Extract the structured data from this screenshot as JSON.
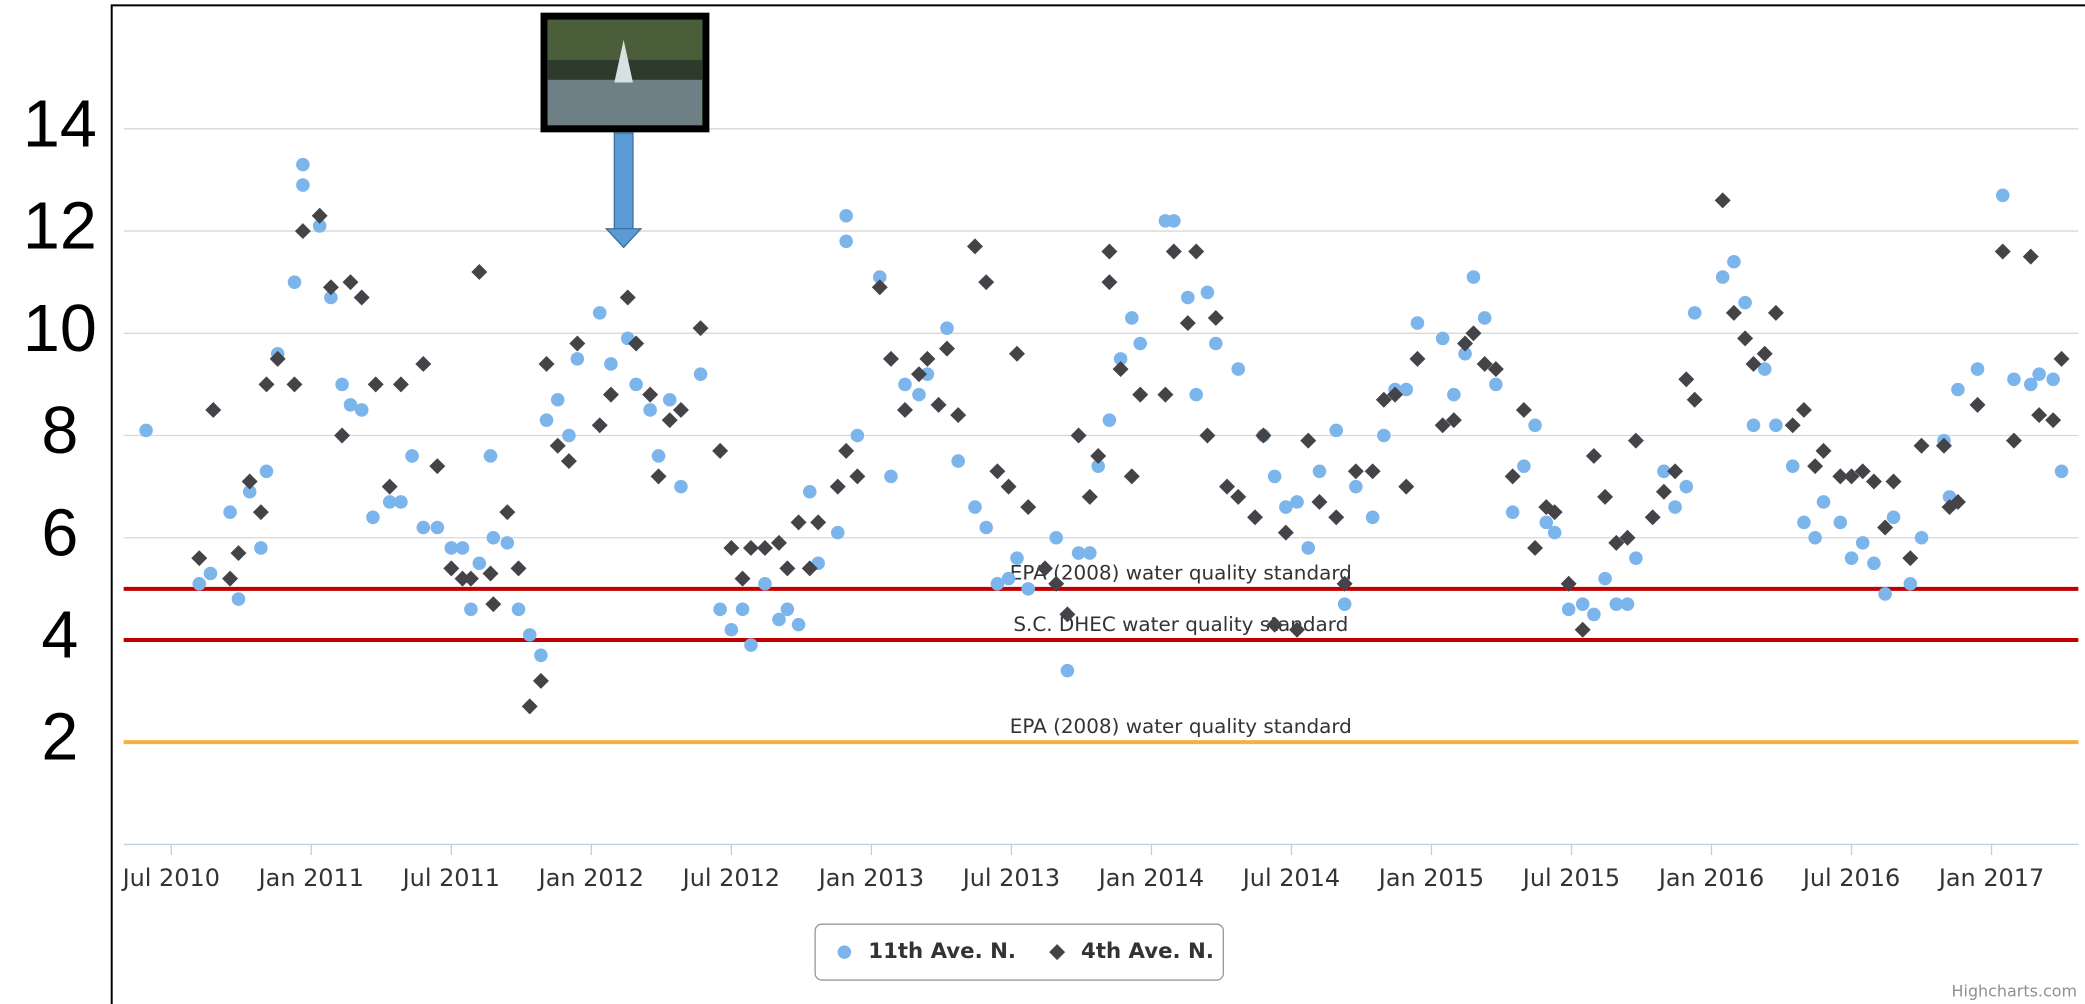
{
  "chart_data": {
    "type": "scatter",
    "xlim": [
      2010.33,
      2017.31
    ],
    "xticks": [
      {
        "value": 2010.5,
        "label": "Jul 2010"
      },
      {
        "value": 2011.0,
        "label": "Jan 2011"
      },
      {
        "value": 2011.5,
        "label": "Jul 2011"
      },
      {
        "value": 2012.0,
        "label": "Jan 2012"
      },
      {
        "value": 2012.5,
        "label": "Jul 2012"
      },
      {
        "value": 2013.0,
        "label": "Jan 2013"
      },
      {
        "value": 2013.5,
        "label": "Jul 2013"
      },
      {
        "value": 2014.0,
        "label": "Jan 2014"
      },
      {
        "value": 2014.5,
        "label": "Jul 2014"
      },
      {
        "value": 2015.0,
        "label": "Jan 2015"
      },
      {
        "value": 2015.5,
        "label": "Jul 2015"
      },
      {
        "value": 2016.0,
        "label": "Jan 2016"
      },
      {
        "value": 2016.5,
        "label": "Jul 2016"
      },
      {
        "value": 2017.0,
        "label": "Jan 2017"
      }
    ],
    "ylim": [
      0,
      16
    ],
    "yticks": [
      2,
      4,
      6,
      8,
      10,
      12,
      14
    ],
    "grid": true,
    "plot_lines": [
      {
        "value": 5,
        "color": "#c00000",
        "label": "EPA (2008) water quality standard"
      },
      {
        "value": 4,
        "color": "#c00000",
        "label": "S.C. DHEC water quality standard"
      },
      {
        "value": 2,
        "color": "#f4b042",
        "label": "EPA (2008) water quality standard"
      }
    ],
    "series": [
      {
        "name": "11th Ave. N.",
        "color": "#7cb5ec",
        "marker": "circle",
        "x": [
          2010.41,
          2010.6,
          2010.64,
          2010.71,
          2010.74,
          2010.78,
          2010.82,
          2010.84,
          2010.88,
          2010.94,
          2010.97,
          2010.97,
          2011.03,
          2011.07,
          2011.11,
          2011.14,
          2011.18,
          2011.22,
          2011.28,
          2011.32,
          2011.36,
          2011.4,
          2011.45,
          2011.5,
          2011.54,
          2011.57,
          2011.6,
          2011.64,
          2011.65,
          2011.7,
          2011.74,
          2011.78,
          2011.82,
          2011.84,
          2011.88,
          2011.92,
          2011.95,
          2012.03,
          2012.07,
          2012.13,
          2012.16,
          2012.21,
          2012.24,
          2012.28,
          2012.32,
          2012.39,
          2012.46,
          2012.5,
          2012.54,
          2012.57,
          2012.62,
          2012.67,
          2012.7,
          2012.74,
          2012.78,
          2012.81,
          2012.88,
          2012.91,
          2012.91,
          2012.95,
          2013.03,
          2013.07,
          2013.12,
          2013.17,
          2013.2,
          2013.27,
          2013.31,
          2013.37,
          2013.41,
          2013.45,
          2013.49,
          2013.52,
          2013.56,
          2013.66,
          2013.7,
          2013.74,
          2013.78,
          2013.81,
          2013.85,
          2013.89,
          2013.93,
          2013.96,
          2014.05,
          2014.08,
          2014.13,
          2014.16,
          2014.2,
          2014.23,
          2014.31,
          2014.4,
          2014.44,
          2014.48,
          2014.52,
          2014.56,
          2014.6,
          2014.66,
          2014.69,
          2014.73,
          2014.79,
          2014.83,
          2014.87,
          2014.91,
          2014.95,
          2015.04,
          2015.08,
          2015.12,
          2015.15,
          2015.19,
          2015.23,
          2015.29,
          2015.33,
          2015.37,
          2015.41,
          2015.44,
          2015.49,
          2015.54,
          2015.58,
          2015.62,
          2015.66,
          2015.7,
          2015.73,
          2015.83,
          2015.87,
          2015.91,
          2015.94,
          2016.04,
          2016.08,
          2016.12,
          2016.15,
          2016.19,
          2016.23,
          2016.29,
          2016.33,
          2016.37,
          2016.4,
          2016.46,
          2016.5,
          2016.54,
          2016.58,
          2016.62,
          2016.65,
          2016.71,
          2016.75,
          2016.83,
          2016.85,
          2016.88,
          2016.95,
          2017.04,
          2017.08,
          2017.14,
          2017.17,
          2017.22,
          2017.25
        ],
        "values": [
          8.1,
          5.1,
          5.3,
          6.5,
          4.8,
          6.9,
          5.8,
          7.3,
          9.6,
          11.0,
          13.3,
          12.9,
          12.1,
          10.7,
          9.0,
          8.6,
          8.5,
          6.4,
          6.7,
          6.7,
          7.6,
          6.2,
          6.2,
          5.8,
          5.8,
          4.6,
          5.5,
          7.6,
          6.0,
          5.9,
          4.6,
          4.1,
          3.7,
          8.3,
          8.7,
          8.0,
          9.5,
          10.4,
          9.4,
          9.9,
          9.0,
          8.5,
          7.6,
          8.7,
          7.0,
          9.2,
          4.6,
          4.2,
          4.6,
          3.9,
          5.1,
          4.4,
          4.6,
          4.3,
          6.9,
          5.5,
          6.1,
          12.3,
          11.8,
          8.0,
          11.1,
          7.2,
          9.0,
          8.8,
          9.2,
          10.1,
          7.5,
          6.6,
          6.2,
          5.1,
          5.2,
          5.6,
          5.0,
          6.0,
          3.4,
          5.7,
          5.7,
          7.4,
          8.3,
          9.5,
          10.3,
          9.8,
          12.2,
          12.2,
          10.7,
          8.8,
          10.8,
          9.8,
          9.3,
          8.0,
          7.2,
          6.6,
          6.7,
          5.8,
          7.3,
          8.1,
          4.7,
          7.0,
          6.4,
          8.0,
          8.9,
          8.9,
          10.2,
          9.9,
          8.8,
          9.6,
          11.1,
          10.3,
          9.0,
          6.5,
          7.4,
          8.2,
          6.3,
          6.1,
          4.6,
          4.7,
          4.5,
          5.2,
          4.7,
          4.7,
          5.6,
          7.3,
          6.6,
          7.0,
          10.4,
          11.1,
          11.4,
          10.6,
          8.2,
          9.3,
          8.2,
          7.4,
          6.3,
          6.0,
          6.7,
          6.3,
          5.6,
          5.9,
          5.5,
          4.9,
          6.4,
          5.1,
          6.0,
          7.9,
          6.8,
          8.9,
          9.3,
          12.7,
          9.1,
          9.0,
          9.2,
          9.1,
          7.3
        ]
      },
      {
        "name": "4th Ave. N.",
        "color": "#434348",
        "marker": "diamond",
        "x": [
          2010.6,
          2010.65,
          2010.71,
          2010.74,
          2010.78,
          2010.82,
          2010.84,
          2010.88,
          2010.94,
          2010.97,
          2011.03,
          2011.07,
          2011.11,
          2011.14,
          2011.18,
          2011.23,
          2011.28,
          2011.32,
          2011.4,
          2011.45,
          2011.5,
          2011.54,
          2011.57,
          2011.6,
          2011.64,
          2011.65,
          2011.7,
          2011.74,
          2011.78,
          2011.82,
          2011.84,
          2011.88,
          2011.92,
          2011.95,
          2012.03,
          2012.07,
          2012.13,
          2012.16,
          2012.21,
          2012.24,
          2012.28,
          2012.32,
          2012.39,
          2012.46,
          2012.5,
          2012.54,
          2012.57,
          2012.62,
          2012.67,
          2012.7,
          2012.74,
          2012.78,
          2012.81,
          2012.88,
          2012.91,
          2012.95,
          2013.03,
          2013.07,
          2013.12,
          2013.17,
          2013.2,
          2013.24,
          2013.27,
          2013.31,
          2013.37,
          2013.41,
          2013.45,
          2013.49,
          2013.52,
          2013.56,
          2013.62,
          2013.66,
          2013.7,
          2013.74,
          2013.78,
          2013.81,
          2013.85,
          2013.85,
          2013.89,
          2013.93,
          2013.96,
          2014.05,
          2014.08,
          2014.13,
          2014.16,
          2014.2,
          2014.23,
          2014.27,
          2014.31,
          2014.37,
          2014.4,
          2014.44,
          2014.48,
          2014.52,
          2014.56,
          2014.6,
          2014.66,
          2014.69,
          2014.73,
          2014.79,
          2014.83,
          2014.87,
          2014.91,
          2014.95,
          2015.04,
          2015.08,
          2015.12,
          2015.15,
          2015.19,
          2015.23,
          2015.29,
          2015.33,
          2015.37,
          2015.41,
          2015.44,
          2015.49,
          2015.54,
          2015.58,
          2015.62,
          2015.66,
          2015.7,
          2015.73,
          2015.79,
          2015.83,
          2015.87,
          2015.91,
          2015.94,
          2016.04,
          2016.08,
          2016.12,
          2016.15,
          2016.19,
          2016.23,
          2016.29,
          2016.33,
          2016.37,
          2016.4,
          2016.46,
          2016.5,
          2016.54,
          2016.58,
          2016.62,
          2016.65,
          2016.71,
          2016.75,
          2016.83,
          2016.85,
          2016.88,
          2016.95,
          2017.04,
          2017.08,
          2017.14,
          2017.17,
          2017.22,
          2017.25
        ],
        "values": [
          5.6,
          8.5,
          5.2,
          5.7,
          7.1,
          6.5,
          9.0,
          9.5,
          9.0,
          12.0,
          12.3,
          10.9,
          8.0,
          11.0,
          10.7,
          9.0,
          7.0,
          9.0,
          9.4,
          7.4,
          5.4,
          5.2,
          5.2,
          11.2,
          5.3,
          4.7,
          6.5,
          5.4,
          2.7,
          3.2,
          9.4,
          7.8,
          7.5,
          9.8,
          8.2,
          8.8,
          10.7,
          9.8,
          8.8,
          7.2,
          8.3,
          8.5,
          10.1,
          7.7,
          5.8,
          5.2,
          5.8,
          5.8,
          5.9,
          5.4,
          6.3,
          5.4,
          6.3,
          7.0,
          7.7,
          7.2,
          10.9,
          9.5,
          8.5,
          9.2,
          9.5,
          8.6,
          9.7,
          8.4,
          11.7,
          11.0,
          7.3,
          7.0,
          9.6,
          6.6,
          5.4,
          5.1,
          4.5,
          8.0,
          6.8,
          7.6,
          11.6,
          11.0,
          9.3,
          7.2,
          8.8,
          8.8,
          11.6,
          10.2,
          11.6,
          8.0,
          10.3,
          7.0,
          6.8,
          6.4,
          8.0,
          4.3,
          6.1,
          4.2,
          7.9,
          6.7,
          6.4,
          5.1,
          7.3,
          7.3,
          8.7,
          8.8,
          7.0,
          9.5,
          8.2,
          8.3,
          9.8,
          10.0,
          9.4,
          9.3,
          7.2,
          8.5,
          5.8,
          6.6,
          6.5,
          5.1,
          4.2,
          7.6,
          6.8,
          5.9,
          6.0,
          7.9,
          6.4,
          6.9,
          7.3,
          9.1,
          8.7,
          12.6,
          10.4,
          9.9,
          9.4,
          9.6,
          10.4,
          8.2,
          8.5,
          7.4,
          7.7,
          7.2,
          7.2,
          7.3,
          7.1,
          6.2,
          7.1,
          5.6,
          7.8,
          7.8,
          6.6,
          6.7,
          8.6,
          11.6,
          7.9,
          11.5,
          8.4,
          8.3,
          9.5
        ]
      }
    ],
    "credits": "Highcharts.com"
  }
}
